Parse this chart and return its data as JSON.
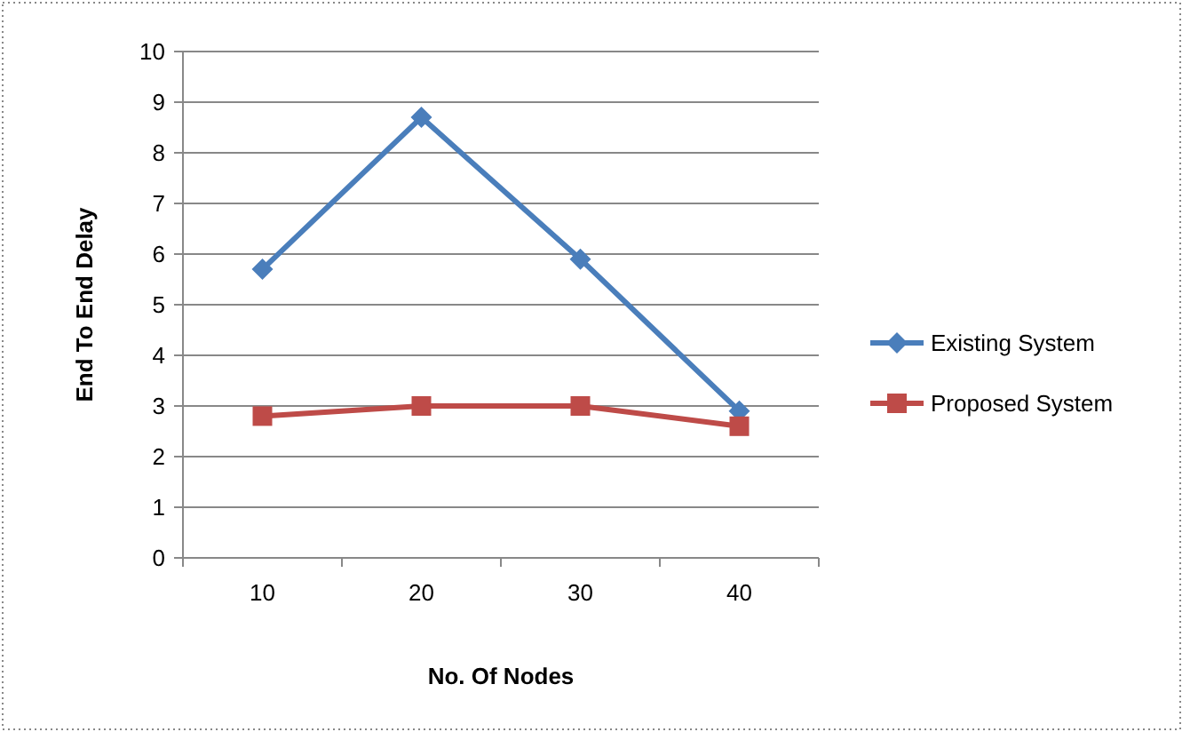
{
  "chart_data": {
    "type": "line",
    "xlabel": "No. Of Nodes",
    "ylabel": "End To End Delay",
    "categories": [
      "10",
      "20",
      "30",
      "40"
    ],
    "series": [
      {
        "name": "Existing System",
        "color": "#4a7ebb",
        "marker": "diamond",
        "values": [
          5.7,
          8.7,
          5.9,
          2.9
        ]
      },
      {
        "name": "Proposed System",
        "color": "#be4b48",
        "marker": "square",
        "values": [
          2.8,
          3.0,
          3.0,
          2.6
        ]
      }
    ],
    "ylim": [
      0,
      10
    ],
    "yticks": [
      0,
      1,
      2,
      3,
      4,
      5,
      6,
      7,
      8,
      9,
      10
    ],
    "grid": "y",
    "legend": "right"
  }
}
